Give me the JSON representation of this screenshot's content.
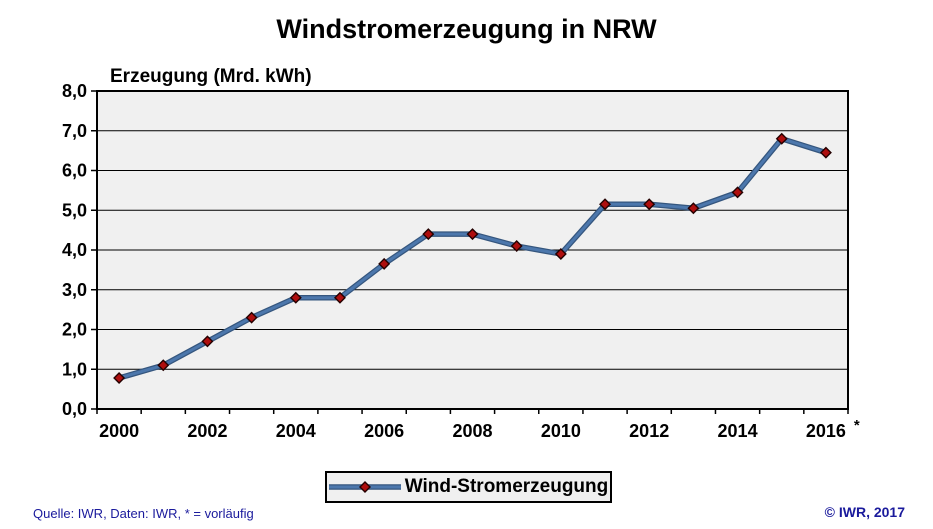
{
  "title": "Windstromerzeugung in NRW",
  "chart_data": {
    "type": "line",
    "title": "Windstromerzeugung in NRW",
    "axis_title": "Erzeugung (Mrd. kWh)",
    "categories": [
      2000,
      2001,
      2002,
      2003,
      2004,
      2005,
      2006,
      2007,
      2008,
      2009,
      2010,
      2011,
      2012,
      2013,
      2014,
      2015,
      2016
    ],
    "x_tick_labels": [
      "2000",
      "2002",
      "2004",
      "2006",
      "2008",
      "2010",
      "2012",
      "2014",
      "2016"
    ],
    "x_footnote_marker": "*",
    "y_tick_labels": [
      "0,0",
      "1,0",
      "2,0",
      "3,0",
      "4,0",
      "5,0",
      "6,0",
      "7,0",
      "8,0"
    ],
    "ylim": [
      0,
      8
    ],
    "y_step": 1,
    "grid": "horizontal",
    "legend_position": "bottom",
    "series": [
      {
        "name": "Wind-Stromerzeugung",
        "values": [
          0.78,
          1.1,
          1.7,
          2.3,
          2.8,
          2.8,
          3.65,
          4.4,
          4.4,
          4.1,
          3.9,
          5.15,
          5.15,
          5.05,
          5.45,
          6.8,
          6.45
        ]
      }
    ],
    "colors": {
      "line": "#4C77AC",
      "line_edge": "#35567E",
      "marker_fill": "#AE0E0E",
      "marker_stroke": "#240000",
      "plot_bg": "#F0F0F0",
      "grid": "#000000",
      "border": "#000000"
    }
  },
  "legend": {
    "label": "Wind-Stromerzeugung"
  },
  "footer": {
    "left": "Quelle: IWR, Daten: IWR, * = vorläufig",
    "right": "© IWR, 2017",
    "text_color": "#1A1A9C"
  }
}
